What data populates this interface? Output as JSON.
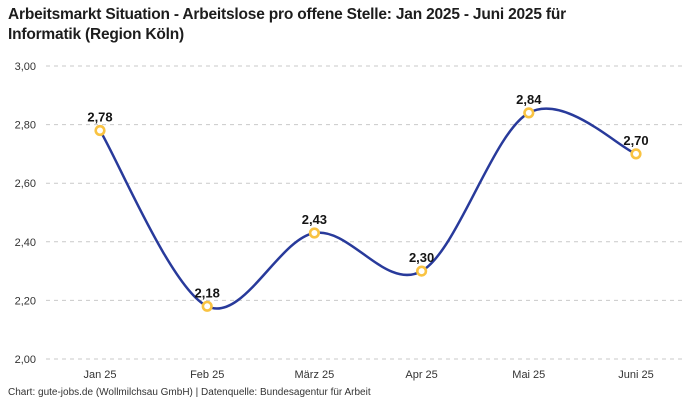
{
  "title": {
    "line1": "Arbeitsmarkt Situation - Arbeitslose pro offene Stelle: Jan 2025 - Juni 2025 für",
    "line2": "Informatik (Region Köln)"
  },
  "footer": {
    "text": "Chart: gute-jobs.de (Wollmilchsau GmbH) | Datenquelle: Bundesagentur für Arbeit"
  },
  "colors": {
    "line": "#283a9b",
    "marker_ring": "#f9c342",
    "marker_fill": "#ffffff",
    "grid": "#c9c9c9",
    "axis_text": "#333333",
    "point_label_text": "#141414",
    "title_text": "#1d1d1d",
    "background": "#ffffff"
  },
  "chart_data": {
    "type": "line",
    "title": "Arbeitsmarkt Situation - Arbeitslose pro offene Stelle: Jan 2025 - Juni 2025 für Informatik (Region Köln)",
    "categories": [
      "Jan 25",
      "Feb 25",
      "März 25",
      "Apr 25",
      "Mai 25",
      "Juni 25"
    ],
    "series": [
      {
        "name": "Arbeitslose pro offene Stelle",
        "values": [
          2.78,
          2.18,
          2.43,
          2.3,
          2.84,
          2.7
        ]
      }
    ],
    "point_labels": [
      "2,78",
      "2,18",
      "2,43",
      "2,30",
      "2,84",
      "2,70"
    ],
    "xlabel": "",
    "ylabel": "",
    "ylim": [
      2.0,
      3.0
    ],
    "yticks": [
      {
        "value": 3.0,
        "label": "3,00"
      },
      {
        "value": 2.8,
        "label": "2,80"
      },
      {
        "value": 2.6,
        "label": "2,60"
      },
      {
        "value": 2.4,
        "label": "2,40"
      },
      {
        "value": 2.2,
        "label": "2,20"
      },
      {
        "value": 2.0,
        "label": "2,00"
      }
    ],
    "grid": "horizontal-dashed",
    "legend": "none",
    "curve": "smooth"
  }
}
